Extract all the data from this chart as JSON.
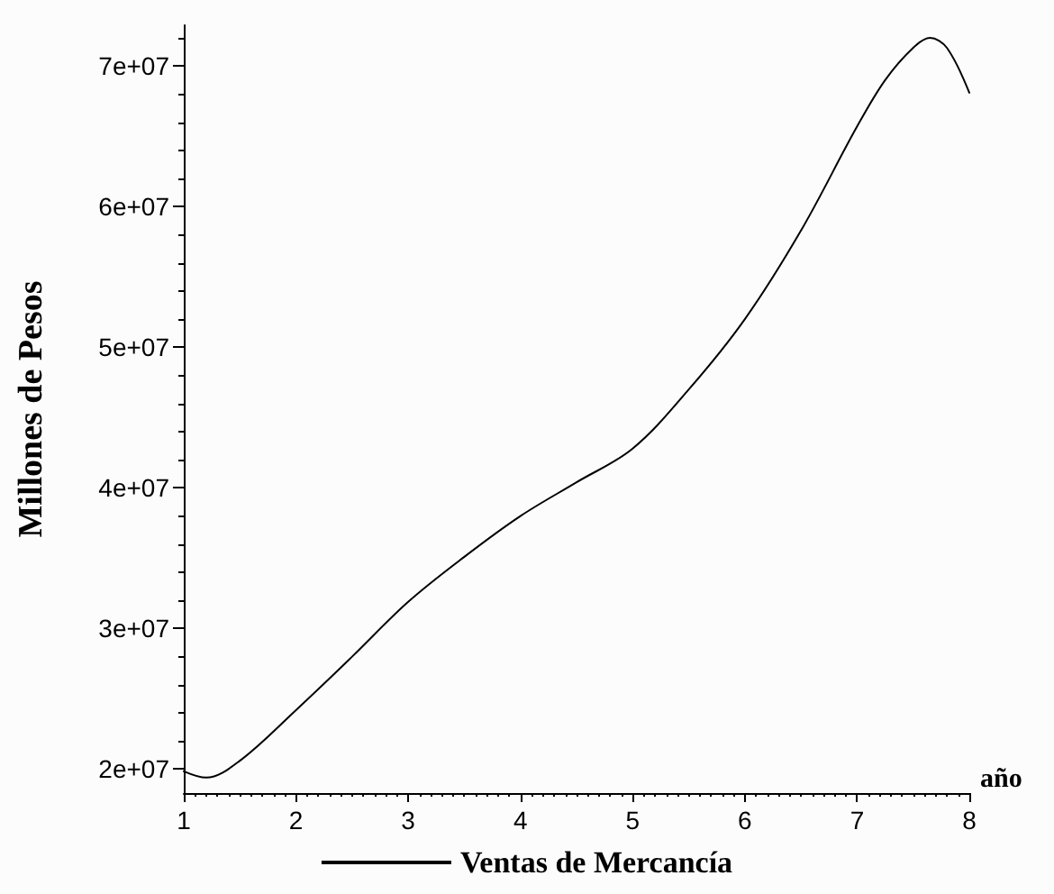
{
  "chart_data": {
    "type": "line",
    "xlabel": "año",
    "ylabel": "Millones de Pesos",
    "x": [
      1,
      1.2,
      1.5,
      2,
      2.5,
      3,
      3.5,
      4,
      4.5,
      5,
      5.5,
      6,
      6.5,
      7,
      7.25,
      7.5,
      7.65,
      7.8,
      8
    ],
    "series": [
      {
        "name": "Ventas de Mercancía",
        "color": "#000000",
        "values": [
          19850000,
          19400000,
          20600000,
          24200000,
          28000000,
          31900000,
          35100000,
          38000000,
          40400000,
          42800000,
          47000000,
          52000000,
          58300000,
          65700000,
          69000000,
          71300000,
          72000000,
          71300000,
          68100000
        ]
      }
    ],
    "xlim": [
      1,
      8
    ],
    "xticks": [
      1,
      2,
      3,
      4,
      5,
      6,
      7,
      8
    ],
    "ylim": [
      18300000,
      72900000
    ],
    "yticks": [
      {
        "value": 20000000,
        "label": "2e+07"
      },
      {
        "value": 30000000,
        "label": "3e+07"
      },
      {
        "value": 40000000,
        "label": "4e+07"
      },
      {
        "value": 50000000,
        "label": "5e+07"
      },
      {
        "value": 60000000,
        "label": "6e+07"
      },
      {
        "value": 70000000,
        "label": "7e+07"
      }
    ],
    "grid": false,
    "legend": "bottom",
    "marker": "none",
    "line_style": "solid"
  }
}
